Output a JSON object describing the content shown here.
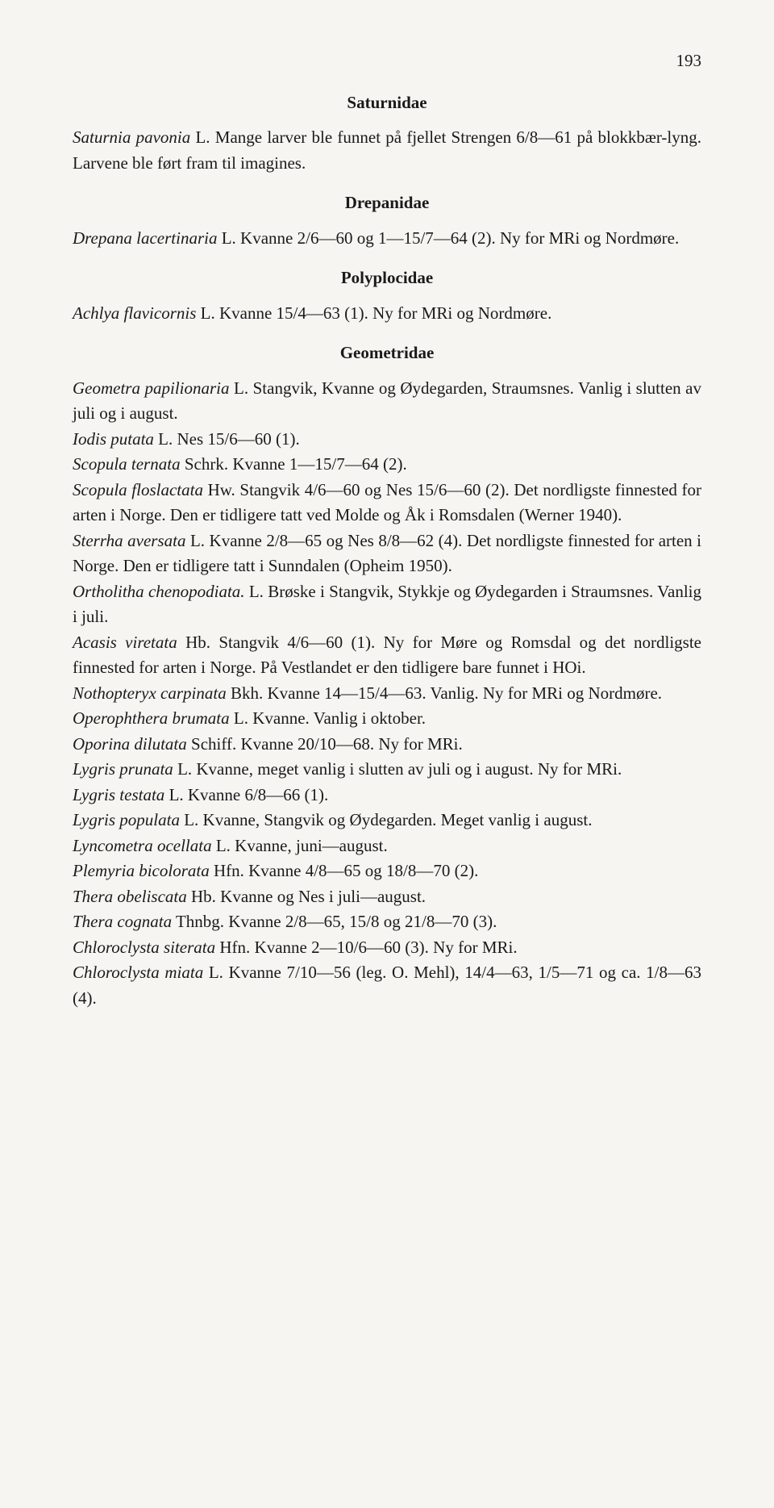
{
  "page_number": "193",
  "sections": {
    "saturnidae": {
      "heading": "Saturnidae",
      "text": "Saturnia pavonia L. Mange larver ble funnet på fjellet Strengen 6/8—61 på blokkbær-lyng. Larvene ble ført fram til imagines."
    },
    "drepanidae": {
      "heading": "Drepanidae",
      "text": "Drepana lacertinaria L. Kvanne 2/6—60 og 1—15/7—64 (2). Ny for MRi og Nordmøre."
    },
    "polyplocidae": {
      "heading": "Polyplocidae",
      "text": "Achlya flavicornis L. Kvanne 15/4—63 (1). Ny for MRi og Nordmøre."
    },
    "geometridae": {
      "heading": "Geometridae",
      "lines": [
        "Geometra papilionaria L. Stangvik, Kvanne og Øydegarden, Straumsnes. Vanlig i slutten av juli og i august.",
        "Iodis putata L. Nes 15/6—60 (1).",
        "Scopula ternata Schrk. Kvanne 1—15/7—64 (2).",
        "Scopula floslactata Hw. Stangvik 4/6—60 og Nes 15/6—60 (2). Det nordligste finnested for arten i Norge. Den er tidligere tatt ved Molde og Åk i Romsdalen (Werner 1940).",
        "Sterrha aversata L. Kvanne 2/8—65 og Nes 8/8—62 (4). Det nordligste finnested for arten i Norge. Den er tidligere tatt i Sunndalen (Opheim 1950).",
        "Ortholitha chenopodiata. L. Brøske i Stangvik, Stykkje og Øydegarden i Straumsnes. Vanlig i juli.",
        "Acasis viretata Hb. Stangvik 4/6—60 (1). Ny for Møre og Romsdal og det nordligste finnested for arten i Norge. På Vestlandet er den tidligere bare funnet i HOi.",
        "Nothopteryx carpinata Bkh. Kvanne 14—15/4—63. Vanlig. Ny for MRi og Nordmøre.",
        "Operophthera brumata L. Kvanne. Vanlig i oktober.",
        "Oporina dilutata Schiff. Kvanne 20/10—68. Ny for MRi.",
        "Lygris prunata L. Kvanne, meget vanlig i slutten av juli og i august. Ny for MRi.",
        "Lygris testata L. Kvanne 6/8—66 (1).",
        "Lygris populata L. Kvanne, Stangvik og Øydegarden. Meget vanlig i august.",
        "Lyncometra ocellata L. Kvanne, juni—august.",
        "Plemyria bicolorata Hfn. Kvanne 4/8—65 og 18/8—70 (2).",
        "Thera obeliscata Hb. Kvanne og Nes i juli—august.",
        "Thera cognata Thnbg. Kvanne 2/8—65, 15/8 og 21/8—70 (3).",
        "Chloroclysta siterata Hfn. Kvanne 2—10/6—60 (3). Ny for MRi.",
        "Chloroclysta miata L. Kvanne 7/10—56 (leg. O. Mehl), 14/4—63, 1/5—71 og ca. 1/8—63 (4)."
      ]
    }
  }
}
